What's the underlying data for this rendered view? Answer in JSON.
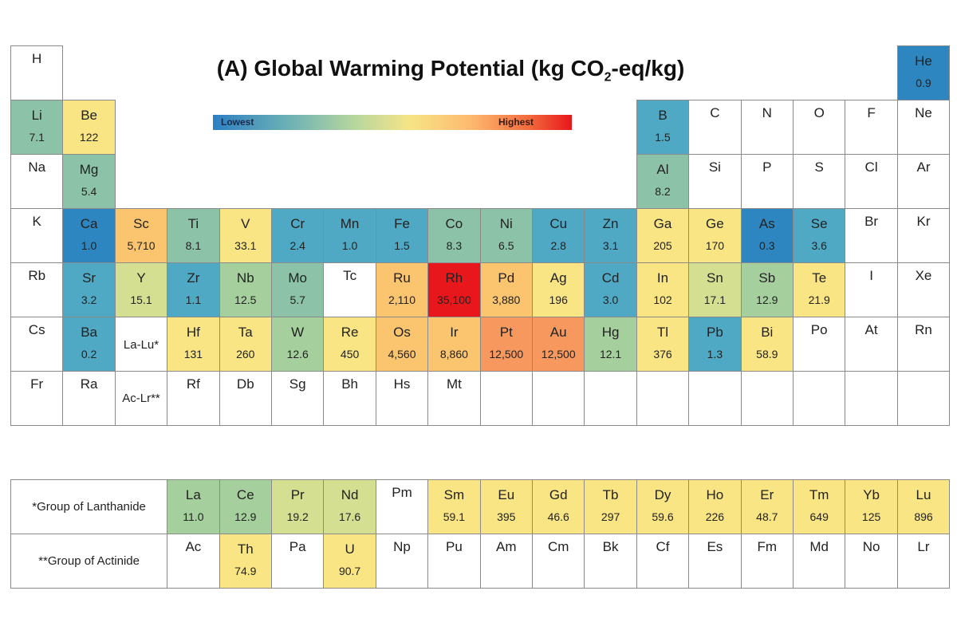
{
  "chart_data": {
    "type": "heatmap",
    "title": "(A) Global Warming Potential (kg CO",
    "title_sub": "2",
    "title_suffix": "-eq/kg)",
    "legend": {
      "low_label": "Lowest",
      "high_label": "Highest"
    },
    "colors": {
      "blue": "#2e86c1",
      "teal": "#4fa8c4",
      "seagreen": "#8cc3a8",
      "green": "#a5cf9c",
      "yellowgreen": "#d4df92",
      "yellow": "#f9e583",
      "lightorange": "#fbc56f",
      "orange": "#f7995e",
      "red": "#e8171b"
    },
    "elements": [
      {
        "s": "H",
        "r": 1,
        "c": 1
      },
      {
        "s": "He",
        "r": 1,
        "c": 18,
        "v": "0.9",
        "k": "blue"
      },
      {
        "s": "Li",
        "r": 2,
        "c": 1,
        "v": "7.1",
        "k": "seagreen"
      },
      {
        "s": "Be",
        "r": 2,
        "c": 2,
        "v": "122",
        "k": "yellow"
      },
      {
        "s": "B",
        "r": 2,
        "c": 13,
        "v": "1.5",
        "k": "teal"
      },
      {
        "s": "C",
        "r": 2,
        "c": 14
      },
      {
        "s": "N",
        "r": 2,
        "c": 15
      },
      {
        "s": "O",
        "r": 2,
        "c": 16
      },
      {
        "s": "F",
        "r": 2,
        "c": 17
      },
      {
        "s": "Ne",
        "r": 2,
        "c": 18
      },
      {
        "s": "Na",
        "r": 3,
        "c": 1
      },
      {
        "s": "Mg",
        "r": 3,
        "c": 2,
        "v": "5.4",
        "k": "seagreen"
      },
      {
        "s": "Al",
        "r": 3,
        "c": 13,
        "v": "8.2",
        "k": "seagreen"
      },
      {
        "s": "Si",
        "r": 3,
        "c": 14
      },
      {
        "s": "P",
        "r": 3,
        "c": 15
      },
      {
        "s": "S",
        "r": 3,
        "c": 16
      },
      {
        "s": "Cl",
        "r": 3,
        "c": 17
      },
      {
        "s": "Ar",
        "r": 3,
        "c": 18
      },
      {
        "s": "K",
        "r": 4,
        "c": 1
      },
      {
        "s": "Ca",
        "r": 4,
        "c": 2,
        "v": "1.0",
        "k": "blue"
      },
      {
        "s": "Sc",
        "r": 4,
        "c": 3,
        "v": "5,710",
        "k": "lightorange"
      },
      {
        "s": "Ti",
        "r": 4,
        "c": 4,
        "v": "8.1",
        "k": "seagreen"
      },
      {
        "s": "V",
        "r": 4,
        "c": 5,
        "v": "33.1",
        "k": "yellow"
      },
      {
        "s": "Cr",
        "r": 4,
        "c": 6,
        "v": "2.4",
        "k": "teal"
      },
      {
        "s": "Mn",
        "r": 4,
        "c": 7,
        "v": "1.0",
        "k": "teal"
      },
      {
        "s": "Fe",
        "r": 4,
        "c": 8,
        "v": "1.5",
        "k": "teal"
      },
      {
        "s": "Co",
        "r": 4,
        "c": 9,
        "v": "8.3",
        "k": "seagreen"
      },
      {
        "s": "Ni",
        "r": 4,
        "c": 10,
        "v": "6.5",
        "k": "seagreen"
      },
      {
        "s": "Cu",
        "r": 4,
        "c": 11,
        "v": "2.8",
        "k": "teal"
      },
      {
        "s": "Zn",
        "r": 4,
        "c": 12,
        "v": "3.1",
        "k": "teal"
      },
      {
        "s": "Ga",
        "r": 4,
        "c": 13,
        "v": "205",
        "k": "yellow"
      },
      {
        "s": "Ge",
        "r": 4,
        "c": 14,
        "v": "170",
        "k": "yellow"
      },
      {
        "s": "As",
        "r": 4,
        "c": 15,
        "v": "0.3",
        "k": "blue"
      },
      {
        "s": "Se",
        "r": 4,
        "c": 16,
        "v": "3.6",
        "k": "teal"
      },
      {
        "s": "Br",
        "r": 4,
        "c": 17
      },
      {
        "s": "Kr",
        "r": 4,
        "c": 18
      },
      {
        "s": "Rb",
        "r": 5,
        "c": 1
      },
      {
        "s": "Sr",
        "r": 5,
        "c": 2,
        "v": "3.2",
        "k": "teal"
      },
      {
        "s": "Y",
        "r": 5,
        "c": 3,
        "v": "15.1",
        "k": "yellowgreen"
      },
      {
        "s": "Zr",
        "r": 5,
        "c": 4,
        "v": "1.1",
        "k": "teal"
      },
      {
        "s": "Nb",
        "r": 5,
        "c": 5,
        "v": "12.5",
        "k": "green"
      },
      {
        "s": "Mo",
        "r": 5,
        "c": 6,
        "v": "5.7",
        "k": "seagreen"
      },
      {
        "s": "Tc",
        "r": 5,
        "c": 7
      },
      {
        "s": "Ru",
        "r": 5,
        "c": 8,
        "v": "2,110",
        "k": "lightorange"
      },
      {
        "s": "Rh",
        "r": 5,
        "c": 9,
        "v": "35,100",
        "k": "red"
      },
      {
        "s": "Pd",
        "r": 5,
        "c": 10,
        "v": "3,880",
        "k": "lightorange"
      },
      {
        "s": "Ag",
        "r": 5,
        "c": 11,
        "v": "196",
        "k": "yellow"
      },
      {
        "s": "Cd",
        "r": 5,
        "c": 12,
        "v": "3.0",
        "k": "teal"
      },
      {
        "s": "In",
        "r": 5,
        "c": 13,
        "v": "102",
        "k": "yellow"
      },
      {
        "s": "Sn",
        "r": 5,
        "c": 14,
        "v": "17.1",
        "k": "yellowgreen"
      },
      {
        "s": "Sb",
        "r": 5,
        "c": 15,
        "v": "12.9",
        "k": "green"
      },
      {
        "s": "Te",
        "r": 5,
        "c": 16,
        "v": "21.9",
        "k": "yellow"
      },
      {
        "s": "I",
        "r": 5,
        "c": 17
      },
      {
        "s": "Xe",
        "r": 5,
        "c": 18
      },
      {
        "s": "Cs",
        "r": 6,
        "c": 1
      },
      {
        "s": "Ba",
        "r": 6,
        "c": 2,
        "v": "0.2",
        "k": "teal"
      },
      {
        "s": "Hf",
        "r": 6,
        "c": 4,
        "v": "131",
        "k": "yellow"
      },
      {
        "s": "Ta",
        "r": 6,
        "c": 5,
        "v": "260",
        "k": "yellow"
      },
      {
        "s": "W",
        "r": 6,
        "c": 6,
        "v": "12.6",
        "k": "green"
      },
      {
        "s": "Re",
        "r": 6,
        "c": 7,
        "v": "450",
        "k": "yellow"
      },
      {
        "s": "Os",
        "r": 6,
        "c": 8,
        "v": "4,560",
        "k": "lightorange"
      },
      {
        "s": "Ir",
        "r": 6,
        "c": 9,
        "v": "8,860",
        "k": "lightorange"
      },
      {
        "s": "Pt",
        "r": 6,
        "c": 10,
        "v": "12,500",
        "k": "orange"
      },
      {
        "s": "Au",
        "r": 6,
        "c": 11,
        "v": "12,500",
        "k": "orange"
      },
      {
        "s": "Hg",
        "r": 6,
        "c": 12,
        "v": "12.1",
        "k": "green"
      },
      {
        "s": "Tl",
        "r": 6,
        "c": 13,
        "v": "376",
        "k": "yellow"
      },
      {
        "s": "Pb",
        "r": 6,
        "c": 14,
        "v": "1.3",
        "k": "teal"
      },
      {
        "s": "Bi",
        "r": 6,
        "c": 15,
        "v": "58.9",
        "k": "yellow"
      },
      {
        "s": "Po",
        "r": 6,
        "c": 16
      },
      {
        "s": "At",
        "r": 6,
        "c": 17
      },
      {
        "s": "Rn",
        "r": 6,
        "c": 18
      },
      {
        "s": "Fr",
        "r": 7,
        "c": 1
      },
      {
        "s": "Ra",
        "r": 7,
        "c": 2
      },
      {
        "s": "Rf",
        "r": 7,
        "c": 4
      },
      {
        "s": "Db",
        "r": 7,
        "c": 5
      },
      {
        "s": "Sg",
        "r": 7,
        "c": 6
      },
      {
        "s": "Bh",
        "r": 7,
        "c": 7
      },
      {
        "s": "Hs",
        "r": 7,
        "c": 8
      },
      {
        "s": "Mt",
        "r": 7,
        "c": 9
      },
      {
        "s": "",
        "r": 7,
        "c": 10
      },
      {
        "s": "",
        "r": 7,
        "c": 11
      },
      {
        "s": "",
        "r": 7,
        "c": 12
      },
      {
        "s": "",
        "r": 7,
        "c": 13
      },
      {
        "s": "",
        "r": 7,
        "c": 14
      },
      {
        "s": "",
        "r": 7,
        "c": 15
      },
      {
        "s": "",
        "r": 7,
        "c": 16
      },
      {
        "s": "",
        "r": 7,
        "c": 17
      },
      {
        "s": "",
        "r": 7,
        "c": 18
      },
      {
        "s": "La",
        "r": 9,
        "c": 4,
        "v": "11.0",
        "k": "green"
      },
      {
        "s": "Ce",
        "r": 9,
        "c": 5,
        "v": "12.9",
        "k": "green"
      },
      {
        "s": "Pr",
        "r": 9,
        "c": 6,
        "v": "19.2",
        "k": "yellowgreen"
      },
      {
        "s": "Nd",
        "r": 9,
        "c": 7,
        "v": "17.6",
        "k": "yellowgreen"
      },
      {
        "s": "Pm",
        "r": 9,
        "c": 8
      },
      {
        "s": "Sm",
        "r": 9,
        "c": 9,
        "v": "59.1",
        "k": "yellow"
      },
      {
        "s": "Eu",
        "r": 9,
        "c": 10,
        "v": "395",
        "k": "yellow"
      },
      {
        "s": "Gd",
        "r": 9,
        "c": 11,
        "v": "46.6",
        "k": "yellow"
      },
      {
        "s": "Tb",
        "r": 9,
        "c": 12,
        "v": "297",
        "k": "yellow"
      },
      {
        "s": "Dy",
        "r": 9,
        "c": 13,
        "v": "59.6",
        "k": "yellow"
      },
      {
        "s": "Ho",
        "r": 9,
        "c": 14,
        "v": "226",
        "k": "yellow"
      },
      {
        "s": "Er",
        "r": 9,
        "c": 15,
        "v": "48.7",
        "k": "yellow"
      },
      {
        "s": "Tm",
        "r": 9,
        "c": 16,
        "v": "649",
        "k": "yellow"
      },
      {
        "s": "Yb",
        "r": 9,
        "c": 17,
        "v": "125",
        "k": "yellow"
      },
      {
        "s": "Lu",
        "r": 9,
        "c": 18,
        "v": "896",
        "k": "yellow"
      },
      {
        "s": "Ac",
        "r": 10,
        "c": 4
      },
      {
        "s": "Th",
        "r": 10,
        "c": 5,
        "v": "74.9",
        "k": "yellow"
      },
      {
        "s": "Pa",
        "r": 10,
        "c": 6
      },
      {
        "s": "U",
        "r": 10,
        "c": 7,
        "v": "90.7",
        "k": "yellow"
      },
      {
        "s": "Np",
        "r": 10,
        "c": 8
      },
      {
        "s": "Pu",
        "r": 10,
        "c": 9
      },
      {
        "s": "Am",
        "r": 10,
        "c": 10
      },
      {
        "s": "Cm",
        "r": 10,
        "c": 11
      },
      {
        "s": "Bk",
        "r": 10,
        "c": 12
      },
      {
        "s": "Cf",
        "r": 10,
        "c": 13
      },
      {
        "s": "Es",
        "r": 10,
        "c": 14
      },
      {
        "s": "Fm",
        "r": 10,
        "c": 15
      },
      {
        "s": "Md",
        "r": 10,
        "c": 16
      },
      {
        "s": "No",
        "r": 10,
        "c": 17
      },
      {
        "s": "Lr",
        "r": 10,
        "c": 18
      }
    ],
    "placeholders": [
      {
        "t": "La-Lu*",
        "r": 6,
        "c": 3
      },
      {
        "t": "Ac-Lr**",
        "r": 7,
        "c": 3
      }
    ],
    "group_labels": [
      {
        "t": "*Group of Lanthanide",
        "r": 9
      },
      {
        "t": "**Group of Actinide",
        "r": 10
      }
    ]
  }
}
